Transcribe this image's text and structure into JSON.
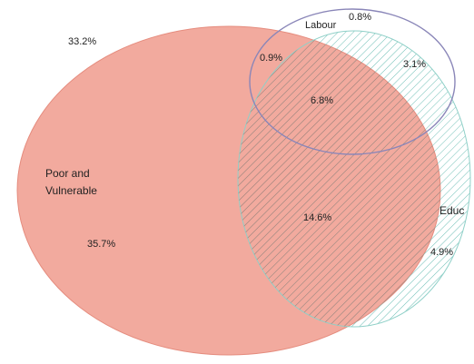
{
  "sets": {
    "poor": {
      "label_line1": "Poor and",
      "label_line2": "Vulnerable",
      "color": "#f2aa9e"
    },
    "labour": {
      "label": "Labour",
      "color": "#8a86b8"
    },
    "education": {
      "label": "Educ",
      "color": "#8fd0c8"
    }
  },
  "regions": {
    "outside": "33.2%",
    "poor_only": "35.7%",
    "labour_only": "0.8%",
    "poor_labour": "0.9%",
    "labour_education": "3.1%",
    "all_three": "6.8%",
    "poor_education": "14.6%",
    "education_only": "4.9%"
  }
}
